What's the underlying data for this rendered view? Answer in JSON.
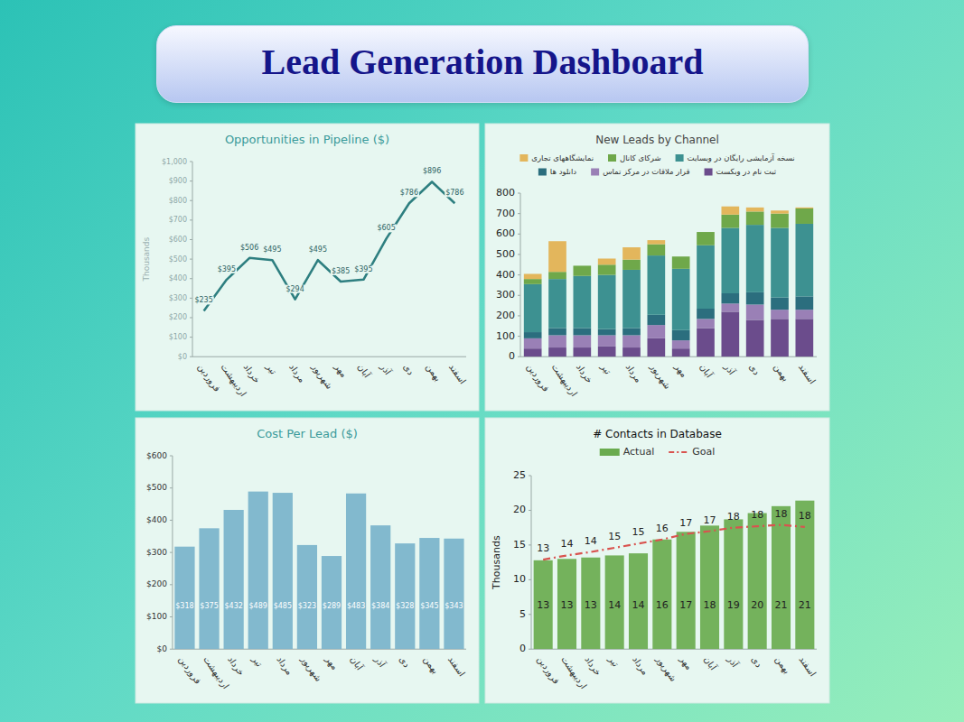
{
  "title": "Lead Generation Dashboard",
  "chart_data": [
    {
      "type": "line",
      "title": "Opportunities in Pipeline ($)",
      "y_label": "Thousands",
      "categories": [
        "فروردین",
        "اردیبهشت",
        "خرداد",
        "تیر",
        "مرداد",
        "شهریور",
        "مهر",
        "آبان",
        "آذر",
        "دی",
        "بهمن",
        "اسفند"
      ],
      "values": [
        235,
        395,
        506,
        495,
        294,
        495,
        385,
        395,
        605,
        786,
        896,
        786
      ],
      "value_labels": [
        "$235",
        "$395",
        "$506",
        "$495",
        "$294",
        "$495",
        "$385",
        "$395",
        "$605",
        "$786",
        "$896",
        "$786"
      ],
      "color": "#2e7f80",
      "data_labels": true,
      "grid": false,
      "ylim": [
        0,
        1000
      ],
      "yticks": [
        {
          "value": 0,
          "label": "$0"
        },
        {
          "value": 100,
          "label": "$100"
        },
        {
          "value": 200,
          "label": "$200"
        },
        {
          "value": 300,
          "label": "$300"
        },
        {
          "value": 400,
          "label": "$400"
        },
        {
          "value": 500,
          "label": "$500"
        },
        {
          "value": 600,
          "label": "$600"
        },
        {
          "value": 700,
          "label": "$700"
        },
        {
          "value": 800,
          "label": "$800"
        },
        {
          "value": 900,
          "label": "$900"
        },
        {
          "value": 1000,
          "label": "$1,000"
        }
      ]
    },
    {
      "type": "bar",
      "title": "New Leads by Channel",
      "stacked": true,
      "legend": "top",
      "grid": false,
      "categories": [
        "فروردین",
        "اردیبهشت",
        "خرداد",
        "تیر",
        "مرداد",
        "شهریور",
        "مهر",
        "آبان",
        "آذر",
        "دی",
        "بهمن",
        "اسفند"
      ],
      "series": [
        {
          "name": "ثبت نام در وبکست",
          "color": "#6b4c8c",
          "values": [
            40,
            45,
            45,
            50,
            45,
            90,
            40,
            140,
            220,
            180,
            185,
            185
          ]
        },
        {
          "name": "قرار ملاقات در مرکز تماس",
          "color": "#9a80b6",
          "values": [
            50,
            60,
            60,
            55,
            60,
            65,
            40,
            45,
            40,
            75,
            45,
            45
          ]
        },
        {
          "name": "دانلود ها",
          "color": "#2b6e7e",
          "values": [
            30,
            35,
            35,
            30,
            35,
            50,
            50,
            50,
            50,
            60,
            60,
            65
          ]
        },
        {
          "name": "نسخه آزمایشی رایگان در وبسایت",
          "color": "#3d9191",
          "values": [
            235,
            240,
            255,
            265,
            285,
            290,
            300,
            310,
            320,
            330,
            340,
            355
          ]
        },
        {
          "name": "شرکای کانال",
          "color": "#6fa84a",
          "values": [
            25,
            35,
            50,
            50,
            50,
            55,
            60,
            65,
            65,
            65,
            70,
            75
          ]
        },
        {
          "name": "نمایشگاههای تجاری",
          "color": "#e3b65c",
          "values": [
            25,
            150,
            0,
            30,
            60,
            20,
            0,
            0,
            40,
            20,
            15,
            5
          ]
        }
      ],
      "ylim": [
        0,
        800
      ],
      "yticks": [
        0,
        100,
        200,
        300,
        400,
        500,
        600,
        700,
        800
      ]
    },
    {
      "type": "bar",
      "title": "Cost Per Lead ($)",
      "data_labels": true,
      "grid": false,
      "categories": [
        "فروردین",
        "اردیبهشت",
        "خرداد",
        "تیر",
        "مرداد",
        "شهریور",
        "مهر",
        "آبان",
        "آذر",
        "دی",
        "بهمن",
        "اسفند"
      ],
      "values": [
        318,
        375,
        432,
        489,
        485,
        323,
        289,
        483,
        384,
        328,
        345,
        343
      ],
      "value_labels": [
        "$318",
        "$375",
        "$432",
        "$489",
        "$485",
        "$323",
        "$289",
        "$483",
        "$384",
        "$328",
        "$345",
        "$343"
      ],
      "color": "#79b3cb",
      "ylim": [
        0,
        600
      ],
      "yticks": [
        {
          "value": 0,
          "label": "$0"
        },
        {
          "value": 100,
          "label": "$100"
        },
        {
          "value": 200,
          "label": "$200"
        },
        {
          "value": 300,
          "label": "$300"
        },
        {
          "value": 400,
          "label": "$400"
        },
        {
          "value": 500,
          "label": "$500"
        },
        {
          "value": 600,
          "label": "$600"
        }
      ]
    },
    {
      "type": "bar",
      "title": "# Contacts in Database",
      "y_label": "Thousands",
      "legend": "top",
      "data_labels": true,
      "grid": false,
      "categories": [
        "فروردین",
        "اردیبهشت",
        "خرداد",
        "تیر",
        "مرداد",
        "شهریور",
        "مهر",
        "آبان",
        "آذر",
        "دی",
        "بهمن",
        "اسفند"
      ],
      "series": [
        {
          "name": "Actual",
          "type": "bar",
          "color": "#6aab4f",
          "values": [
            12.8,
            13.0,
            13.2,
            13.5,
            13.8,
            15.8,
            16.9,
            17.8,
            18.7,
            19.6,
            20.6,
            21.4
          ],
          "value_labels": [
            "13",
            "13",
            "13",
            "14",
            "14",
            "16",
            "17",
            "18",
            "19",
            "20",
            "21",
            "21"
          ]
        },
        {
          "name": "Goal",
          "type": "line",
          "line_style": "dashed",
          "color": "#d9534f",
          "values": [
            12.9,
            13.5,
            14.0,
            14.6,
            15.2,
            15.8,
            16.6,
            17.0,
            17.5,
            17.7,
            17.9,
            17.6
          ],
          "value_labels": [
            "13",
            "14",
            "14",
            "15",
            "15",
            "16",
            "17",
            "17",
            "18",
            "18",
            "18",
            "18"
          ]
        }
      ],
      "ylim": [
        0,
        25
      ],
      "yticks": [
        0,
        5,
        10,
        15,
        20,
        25
      ]
    }
  ]
}
